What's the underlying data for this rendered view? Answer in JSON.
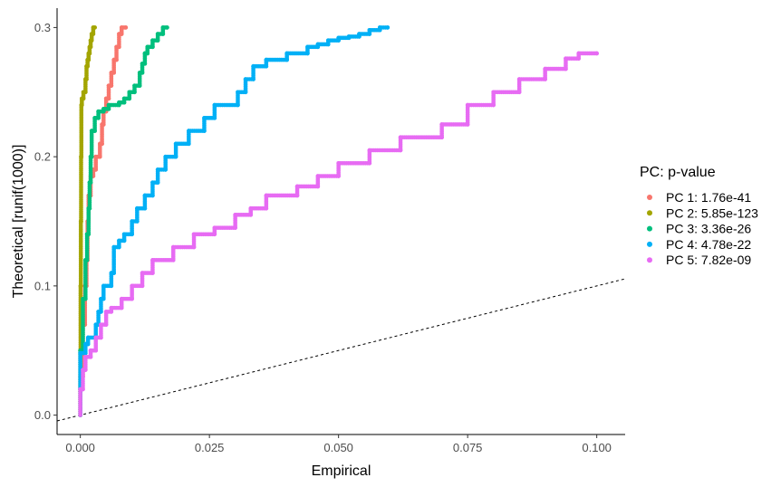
{
  "chart_data": {
    "type": "scatter",
    "title": "",
    "xlabel": "Empirical",
    "ylabel": "Theoretical [runif(1000)]",
    "xlim": [
      -0.0045,
      0.1055
    ],
    "ylim": [
      -0.015,
      0.315
    ],
    "x_ticks": [
      0.0,
      0.025,
      0.05,
      0.075,
      0.1
    ],
    "x_tick_labels": [
      "0.000",
      "0.025",
      "0.050",
      "0.075",
      "0.100"
    ],
    "y_ticks": [
      0.0,
      0.1,
      0.2,
      0.3
    ],
    "y_tick_labels": [
      "0.0",
      "0.1",
      "0.2",
      "0.3"
    ],
    "grid": false,
    "legend": {
      "title": "PC: p-value",
      "position": "right"
    },
    "reference_line": {
      "type": "identity",
      "style": "dashed",
      "color": "#000000"
    },
    "series": [
      {
        "name": "PC 1: 1.76e-41",
        "color": "#F8766D",
        "points": [
          [
            0.0,
            0.0
          ],
          [
            0.0005,
            0.03
          ],
          [
            0.0009,
            0.07
          ],
          [
            0.0012,
            0.1
          ],
          [
            0.0014,
            0.12
          ],
          [
            0.0016,
            0.15
          ],
          [
            0.002,
            0.17
          ],
          [
            0.0025,
            0.185
          ],
          [
            0.003,
            0.19
          ],
          [
            0.0038,
            0.2
          ],
          [
            0.0042,
            0.21
          ],
          [
            0.0045,
            0.225
          ],
          [
            0.005,
            0.235
          ],
          [
            0.0055,
            0.245
          ],
          [
            0.006,
            0.255
          ],
          [
            0.0065,
            0.265
          ],
          [
            0.007,
            0.275
          ],
          [
            0.0075,
            0.285
          ],
          [
            0.008,
            0.295
          ],
          [
            0.0088,
            0.3
          ]
        ]
      },
      {
        "name": "PC 2: 5.85e-123",
        "color": "#A3A500",
        "points": [
          [
            0.0,
            0.0
          ],
          [
            5e-05,
            0.05
          ],
          [
            0.0001,
            0.1
          ],
          [
            0.00015,
            0.15
          ],
          [
            0.0002,
            0.2
          ],
          [
            0.0003,
            0.24
          ],
          [
            0.0006,
            0.245
          ],
          [
            0.001,
            0.25
          ],
          [
            0.0012,
            0.26
          ],
          [
            0.0014,
            0.27
          ],
          [
            0.0016,
            0.275
          ],
          [
            0.0018,
            0.28
          ],
          [
            0.002,
            0.285
          ],
          [
            0.0022,
            0.29
          ],
          [
            0.0025,
            0.295
          ],
          [
            0.0028,
            0.3
          ]
        ]
      },
      {
        "name": "PC 3: 3.36e-26",
        "color": "#00BF7D",
        "points": [
          [
            0.0,
            0.0
          ],
          [
            0.0005,
            0.05
          ],
          [
            0.001,
            0.09
          ],
          [
            0.0013,
            0.12
          ],
          [
            0.0016,
            0.14
          ],
          [
            0.0018,
            0.16
          ],
          [
            0.002,
            0.18
          ],
          [
            0.0022,
            0.2
          ],
          [
            0.0028,
            0.22
          ],
          [
            0.0035,
            0.23
          ],
          [
            0.0045,
            0.235
          ],
          [
            0.0055,
            0.237
          ],
          [
            0.0075,
            0.24
          ],
          [
            0.0085,
            0.242
          ],
          [
            0.0095,
            0.245
          ],
          [
            0.0105,
            0.25
          ],
          [
            0.0115,
            0.255
          ],
          [
            0.012,
            0.265
          ],
          [
            0.0125,
            0.272
          ],
          [
            0.013,
            0.28
          ],
          [
            0.014,
            0.285
          ],
          [
            0.015,
            0.29
          ],
          [
            0.016,
            0.295
          ],
          [
            0.0168,
            0.3
          ]
        ]
      },
      {
        "name": "PC 4: 4.78e-22",
        "color": "#00B0F6",
        "points": [
          [
            0.0,
            0.0
          ],
          [
            0.0,
            0.02
          ],
          [
            0.001,
            0.048
          ],
          [
            0.0015,
            0.055
          ],
          [
            0.003,
            0.06
          ],
          [
            0.0035,
            0.07
          ],
          [
            0.004,
            0.08
          ],
          [
            0.0045,
            0.09
          ],
          [
            0.006,
            0.1
          ],
          [
            0.0065,
            0.11
          ],
          [
            0.0075,
            0.13
          ],
          [
            0.0085,
            0.135
          ],
          [
            0.01,
            0.14
          ],
          [
            0.011,
            0.15
          ],
          [
            0.0125,
            0.16
          ],
          [
            0.014,
            0.17
          ],
          [
            0.015,
            0.18
          ],
          [
            0.0165,
            0.19
          ],
          [
            0.0185,
            0.2
          ],
          [
            0.021,
            0.21
          ],
          [
            0.024,
            0.22
          ],
          [
            0.026,
            0.23
          ],
          [
            0.0305,
            0.24
          ],
          [
            0.032,
            0.25
          ],
          [
            0.0335,
            0.26
          ],
          [
            0.036,
            0.27
          ],
          [
            0.04,
            0.275
          ],
          [
            0.044,
            0.28
          ],
          [
            0.046,
            0.285
          ],
          [
            0.048,
            0.287
          ],
          [
            0.05,
            0.29
          ],
          [
            0.052,
            0.292
          ],
          [
            0.054,
            0.293
          ],
          [
            0.056,
            0.295
          ],
          [
            0.058,
            0.298
          ],
          [
            0.0595,
            0.3
          ]
        ]
      },
      {
        "name": "PC 5: 7.82e-09",
        "color": "#E76BF3",
        "points": [
          [
            0.0,
            0.0
          ],
          [
            0.0005,
            0.02
          ],
          [
            0.001,
            0.035
          ],
          [
            0.002,
            0.045
          ],
          [
            0.003,
            0.05
          ],
          [
            0.004,
            0.06
          ],
          [
            0.005,
            0.07
          ],
          [
            0.006,
            0.08
          ],
          [
            0.008,
            0.083
          ],
          [
            0.01,
            0.09
          ],
          [
            0.012,
            0.1
          ],
          [
            0.014,
            0.11
          ],
          [
            0.018,
            0.12
          ],
          [
            0.022,
            0.13
          ],
          [
            0.026,
            0.14
          ],
          [
            0.03,
            0.145
          ],
          [
            0.033,
            0.155
          ],
          [
            0.036,
            0.16
          ],
          [
            0.042,
            0.17
          ],
          [
            0.046,
            0.177
          ],
          [
            0.05,
            0.185
          ],
          [
            0.056,
            0.195
          ],
          [
            0.062,
            0.205
          ],
          [
            0.07,
            0.215
          ],
          [
            0.075,
            0.225
          ],
          [
            0.08,
            0.24
          ],
          [
            0.085,
            0.25
          ],
          [
            0.09,
            0.26
          ],
          [
            0.094,
            0.268
          ],
          [
            0.0965,
            0.276
          ],
          [
            0.1,
            0.28
          ]
        ]
      }
    ]
  }
}
